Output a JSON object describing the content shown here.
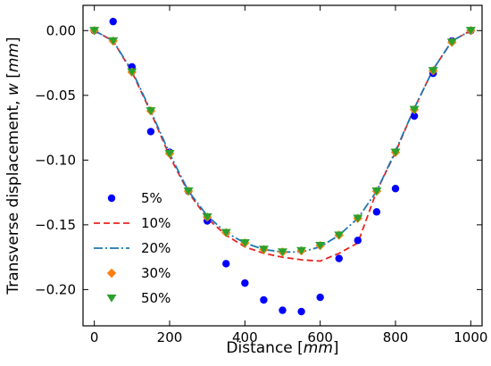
{
  "chart_data": {
    "type": "scatter",
    "title": "",
    "xlabel": "Distance [mm]",
    "xlabel_parts": {
      "text": "Distance [",
      "unit": "mm",
      "close": "]"
    },
    "ylabel": "Transverse displacement, w [mm]",
    "ylabel_parts": {
      "text": "Transverse displacement, ",
      "var": "w",
      "open": " [",
      "unit": "mm",
      "close": "]"
    },
    "xlim": [
      -30,
      1030
    ],
    "ylim": [
      -0.228,
      0.0195
    ],
    "xticks": [
      0,
      200,
      400,
      600,
      800,
      1000
    ],
    "xtick_labels": [
      "0",
      "200",
      "400",
      "600",
      "800",
      "1000"
    ],
    "yticks": [
      0.0,
      -0.05,
      -0.1,
      -0.15,
      -0.2
    ],
    "ytick_labels": [
      "0.00",
      "−0.05",
      "−0.10",
      "−0.15",
      "−0.20"
    ],
    "grid": false,
    "legend_position": "lower-left",
    "series": [
      {
        "name": "5%",
        "style": "markers",
        "marker": "circle",
        "color": "#0000ff",
        "x": [
          0,
          50,
          100,
          150,
          200,
          250,
          300,
          350,
          400,
          450,
          500,
          550,
          600,
          650,
          700,
          750,
          800,
          850,
          900,
          950,
          1000
        ],
        "y": [
          0.0,
          0.007,
          -0.028,
          -0.078,
          -0.094,
          -0.124,
          -0.147,
          -0.18,
          -0.195,
          -0.208,
          -0.216,
          -0.217,
          -0.206,
          -0.176,
          -0.162,
          -0.14,
          -0.122,
          -0.066,
          -0.033,
          -0.008,
          0.0
        ]
      },
      {
        "name": "10%",
        "style": "dashed",
        "color": "#e8251f",
        "x": [
          0,
          50,
          100,
          150,
          200,
          250,
          300,
          350,
          400,
          450,
          500,
          550,
          600,
          650,
          700,
          750,
          800,
          850,
          900,
          950,
          1000
        ],
        "y": [
          0.0,
          -0.008,
          -0.032,
          -0.063,
          -0.097,
          -0.125,
          -0.145,
          -0.158,
          -0.167,
          -0.172,
          -0.175,
          -0.177,
          -0.178,
          -0.172,
          -0.164,
          -0.124,
          -0.094,
          -0.06,
          -0.03,
          -0.008,
          0.0
        ]
      },
      {
        "name": "20%",
        "style": "dashdot",
        "color": "#1f77b4",
        "x": [
          0,
          50,
          100,
          150,
          200,
          250,
          300,
          350,
          400,
          450,
          500,
          550,
          600,
          650,
          700,
          750,
          800,
          850,
          900,
          950,
          1000
        ],
        "y": [
          0.0,
          -0.008,
          -0.031,
          -0.062,
          -0.095,
          -0.124,
          -0.143,
          -0.156,
          -0.164,
          -0.169,
          -0.171,
          -0.171,
          -0.167,
          -0.158,
          -0.145,
          -0.124,
          -0.093,
          -0.06,
          -0.03,
          -0.008,
          0.0
        ]
      },
      {
        "name": "30%",
        "style": "markers",
        "marker": "diamond",
        "color": "#ff7f0e",
        "x": [
          0,
          50,
          100,
          150,
          200,
          250,
          300,
          350,
          400,
          450,
          500,
          550,
          600,
          650,
          700,
          750,
          800,
          850,
          900,
          950,
          1000
        ],
        "y": [
          0.0,
          -0.008,
          -0.032,
          -0.062,
          -0.095,
          -0.124,
          -0.144,
          -0.156,
          -0.164,
          -0.169,
          -0.171,
          -0.17,
          -0.166,
          -0.158,
          -0.145,
          -0.124,
          -0.094,
          -0.061,
          -0.031,
          -0.009,
          0.0
        ]
      },
      {
        "name": "50%",
        "style": "markers",
        "marker": "triangle-down",
        "color": "#2ca02c",
        "x": [
          0,
          50,
          100,
          150,
          200,
          250,
          300,
          350,
          400,
          450,
          500,
          550,
          600,
          650,
          700,
          750,
          800,
          850,
          900,
          950,
          1000
        ],
        "y": [
          0.0,
          -0.008,
          -0.032,
          -0.062,
          -0.095,
          -0.124,
          -0.144,
          -0.156,
          -0.164,
          -0.169,
          -0.171,
          -0.17,
          -0.166,
          -0.158,
          -0.145,
          -0.124,
          -0.094,
          -0.061,
          -0.031,
          -0.009,
          0.0
        ]
      }
    ]
  }
}
